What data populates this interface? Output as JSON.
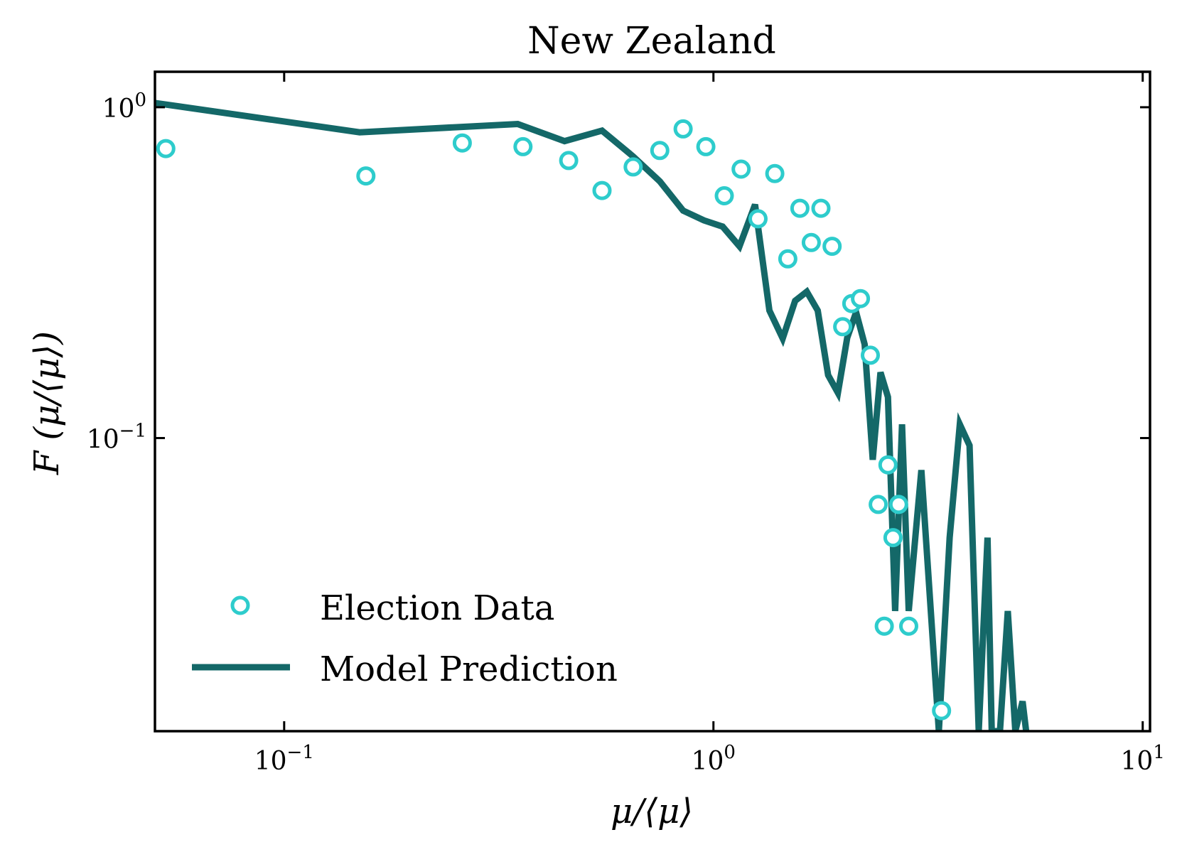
{
  "chart_data": {
    "type": "scatter",
    "title": "New Zealand",
    "xlabel": "μ/⟨μ⟩",
    "ylabel": "F (μ/⟨μ⟩)",
    "x_scale": "log",
    "y_scale": "log",
    "xlim": [
      0.05,
      10.4
    ],
    "ylim": [
      0.013,
      1.28
    ],
    "x_ticks": [
      {
        "value": 0.1,
        "base": "10",
        "exp": "−1"
      },
      {
        "value": 1,
        "base": "10",
        "exp": "0"
      },
      {
        "value": 10,
        "base": "10",
        "exp": "1"
      }
    ],
    "y_ticks": [
      {
        "value": 0.1,
        "base": "10",
        "exp": "−1"
      },
      {
        "value": 1,
        "base": "10",
        "exp": "0"
      }
    ],
    "grid": false,
    "legend_position": "bottom-left",
    "colors": {
      "election": "#2ecccc",
      "model": "#146868",
      "axis": "#000000"
    },
    "series": [
      {
        "name": "Election Data",
        "kind": "markers",
        "points": [
          [
            0.053,
            0.75
          ],
          [
            0.155,
            0.62
          ],
          [
            0.26,
            0.78
          ],
          [
            0.36,
            0.76
          ],
          [
            0.46,
            0.69
          ],
          [
            0.55,
            0.56
          ],
          [
            0.65,
            0.66
          ],
          [
            0.75,
            0.74
          ],
          [
            0.85,
            0.86
          ],
          [
            0.96,
            0.76
          ],
          [
            1.06,
            0.54
          ],
          [
            1.16,
            0.65
          ],
          [
            1.27,
            0.46
          ],
          [
            1.39,
            0.63
          ],
          [
            1.49,
            0.348
          ],
          [
            1.59,
            0.495
          ],
          [
            1.69,
            0.39
          ],
          [
            1.78,
            0.495
          ],
          [
            1.89,
            0.38
          ],
          [
            2.0,
            0.217
          ],
          [
            2.1,
            0.255
          ],
          [
            2.2,
            0.264
          ],
          [
            2.32,
            0.178
          ],
          [
            2.42,
            0.063
          ],
          [
            2.5,
            0.027
          ],
          [
            2.55,
            0.083
          ],
          [
            2.62,
            0.05
          ],
          [
            2.7,
            0.063
          ],
          [
            2.85,
            0.027
          ],
          [
            3.4,
            0.015
          ]
        ]
      },
      {
        "name": "Model Prediction",
        "kind": "line",
        "points": [
          [
            0.05,
            1.03
          ],
          [
            0.15,
            0.84
          ],
          [
            0.25,
            0.87
          ],
          [
            0.35,
            0.89
          ],
          [
            0.45,
            0.79
          ],
          [
            0.55,
            0.85
          ],
          [
            0.65,
            0.71
          ],
          [
            0.75,
            0.597
          ],
          [
            0.85,
            0.487
          ],
          [
            0.95,
            0.455
          ],
          [
            1.05,
            0.436
          ],
          [
            1.15,
            0.38
          ],
          [
            1.25,
            0.508
          ],
          [
            1.35,
            0.243
          ],
          [
            1.45,
            0.2
          ],
          [
            1.55,
            0.26
          ],
          [
            1.65,
            0.277
          ],
          [
            1.75,
            0.243
          ],
          [
            1.85,
            0.155
          ],
          [
            1.95,
            0.137
          ],
          [
            2.05,
            0.201
          ],
          [
            2.15,
            0.24
          ],
          [
            2.25,
            0.192
          ],
          [
            2.35,
            0.086
          ],
          [
            2.45,
            0.158
          ],
          [
            2.55,
            0.133
          ],
          [
            2.65,
            0.03
          ],
          [
            2.75,
            0.11
          ],
          [
            2.85,
            0.03
          ],
          [
            3.05,
            0.08
          ],
          [
            3.35,
            0.013
          ],
          [
            3.55,
            0.05
          ],
          [
            3.75,
            0.11
          ],
          [
            3.95,
            0.095
          ],
          [
            4.15,
            0.013
          ],
          [
            4.35,
            0.05
          ],
          [
            4.45,
            0.013
          ],
          [
            4.65,
            0.013
          ],
          [
            4.85,
            0.03
          ],
          [
            5.05,
            0.013
          ],
          [
            5.25,
            0.016
          ],
          [
            5.35,
            0.013
          ]
        ]
      }
    ]
  }
}
